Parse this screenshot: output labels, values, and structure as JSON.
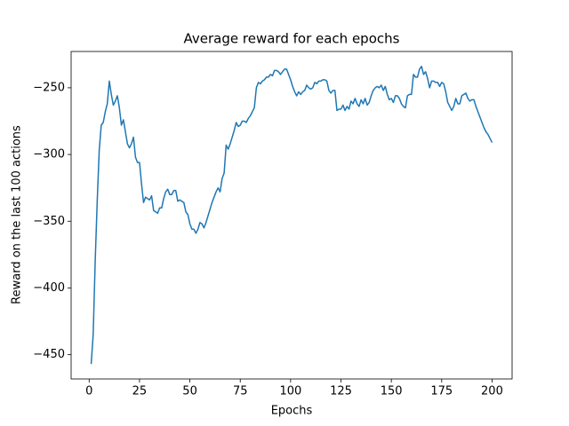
{
  "chart_data": {
    "type": "line",
    "title": "Average reward for each epochs",
    "xlabel": "Epochs",
    "ylabel": "Reward on the last 100 actions",
    "xlim": [
      -8.95,
      209.95
    ],
    "ylim": [
      -468.2,
      -222.8
    ],
    "xticks": [
      0,
      25,
      50,
      75,
      100,
      125,
      150,
      175,
      200
    ],
    "yticks": [
      {
        "value": -450,
        "label": "−450"
      },
      {
        "value": -400,
        "label": "−400"
      },
      {
        "value": -350,
        "label": "−350"
      },
      {
        "value": -300,
        "label": "−300"
      },
      {
        "value": -250,
        "label": "−250"
      }
    ],
    "grid": false,
    "x": [
      1,
      2,
      3,
      4,
      5,
      6,
      7,
      8,
      9,
      10,
      11,
      12,
      13,
      14,
      15,
      16,
      17,
      18,
      19,
      20,
      21,
      22,
      23,
      24,
      25,
      26,
      27,
      28,
      29,
      30,
      31,
      32,
      33,
      34,
      35,
      36,
      37,
      38,
      39,
      40,
      41,
      42,
      43,
      44,
      45,
      46,
      47,
      48,
      49,
      50,
      51,
      52,
      53,
      54,
      55,
      56,
      57,
      58,
      59,
      60,
      61,
      62,
      63,
      64,
      65,
      66,
      67,
      68,
      69,
      70,
      71,
      72,
      73,
      74,
      75,
      76,
      77,
      78,
      79,
      80,
      81,
      82,
      83,
      84,
      85,
      86,
      87,
      88,
      89,
      90,
      91,
      92,
      93,
      94,
      95,
      96,
      97,
      98,
      99,
      100,
      101,
      102,
      103,
      104,
      105,
      106,
      107,
      108,
      109,
      110,
      111,
      112,
      113,
      114,
      115,
      116,
      117,
      118,
      119,
      120,
      121,
      122,
      123,
      124,
      125,
      126,
      127,
      128,
      129,
      130,
      131,
      132,
      133,
      134,
      135,
      136,
      137,
      138,
      139,
      140,
      141,
      142,
      143,
      144,
      145,
      146,
      147,
      148,
      149,
      150,
      151,
      152,
      153,
      154,
      155,
      156,
      157,
      158,
      159,
      160,
      161,
      162,
      163,
      164,
      165,
      166,
      167,
      168,
      169,
      170,
      171,
      172,
      173,
      174,
      175,
      176,
      177,
      178,
      179,
      180,
      181,
      182,
      183,
      184,
      185,
      186,
      187,
      188,
      189,
      190,
      191,
      192,
      193,
      194,
      195,
      196,
      197,
      198,
      199,
      200
    ],
    "series": [
      {
        "color": "#1f77b4",
        "values": [
          -457,
          -435,
          -380,
          -335,
          -297,
          -278,
          -276,
          -268,
          -262,
          -245,
          -255,
          -263,
          -260,
          -256,
          -265,
          -278,
          -274,
          -283,
          -292,
          -295,
          -292,
          -287,
          -302,
          -306,
          -306,
          -322,
          -336,
          -332,
          -333,
          -334,
          -331,
          -342,
          -343,
          -344,
          -340,
          -340,
          -333,
          -328,
          -326,
          -330,
          -330,
          -327,
          -327,
          -335,
          -334,
          -335,
          -336,
          -343,
          -345,
          -352,
          -356,
          -356,
          -359,
          -356,
          -351,
          -352,
          -355,
          -351,
          -346,
          -341,
          -336,
          -332,
          -328,
          -325,
          -328,
          -318,
          -314,
          -293,
          -296,
          -292,
          -287,
          -282,
          -276,
          -279,
          -278,
          -275,
          -275,
          -276,
          -273,
          -271,
          -268,
          -265,
          -250,
          -246,
          -247,
          -245,
          -244,
          -242,
          -242,
          -240,
          -241,
          -237,
          -237,
          -238,
          -240,
          -238,
          -236,
          -236,
          -240,
          -244,
          -249,
          -253,
          -256,
          -253,
          -255,
          -253,
          -252,
          -248,
          -250,
          -251,
          -250,
          -246,
          -247,
          -245,
          -245,
          -244,
          -244,
          -245,
          -252,
          -254,
          -252,
          -252,
          -267,
          -266,
          -266,
          -263,
          -267,
          -264,
          -266,
          -260,
          -262,
          -258,
          -262,
          -264,
          -259,
          -262,
          -258,
          -263,
          -261,
          -256,
          -252,
          -250,
          -249,
          -250,
          -248,
          -252,
          -249,
          -255,
          -259,
          -258,
          -261,
          -256,
          -256,
          -258,
          -262,
          -264,
          -265,
          -256,
          -255,
          -255,
          -240,
          -242,
          -242,
          -236,
          -234,
          -240,
          -238,
          -243,
          -250,
          -245,
          -245,
          -246,
          -246,
          -249,
          -246,
          -247,
          -253,
          -261,
          -264,
          -267,
          -264,
          -258,
          -262,
          -262,
          -256,
          -255,
          -254,
          -258,
          -260,
          -259,
          -259,
          -264,
          -268,
          -272,
          -276,
          -280,
          -283,
          -285,
          -288,
          -291
        ]
      }
    ]
  }
}
